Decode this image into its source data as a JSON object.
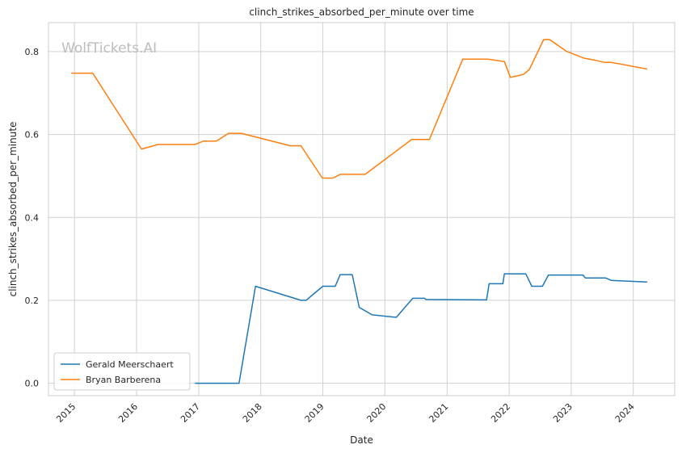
{
  "chart_data": {
    "type": "line",
    "title": "clinch_strikes_absorbed_per_minute over time",
    "xlabel": "Date",
    "ylabel": "clinch_strikes_absorbed_per_minute",
    "watermark": "WolfTickets.AI",
    "xlim": [
      "2014-08-01",
      "2024-09-01"
    ],
    "ylim": [
      -0.03,
      0.87
    ],
    "x_ticks": [
      "2015-01-01",
      "2016-01-01",
      "2017-01-01",
      "2018-01-01",
      "2019-01-01",
      "2020-01-01",
      "2021-01-01",
      "2022-01-01",
      "2023-01-01",
      "2024-01-01"
    ],
    "x_tick_labels": [
      "2015",
      "2016",
      "2017",
      "2018",
      "2019",
      "2020",
      "2021",
      "2022",
      "2023",
      "2024"
    ],
    "y_ticks": [
      0.0,
      0.2,
      0.4,
      0.6,
      0.8
    ],
    "y_tick_labels": [
      "0.0",
      "0.2",
      "0.4",
      "0.6",
      "0.8"
    ],
    "grid": true,
    "legend_position": "lower-left",
    "series": [
      {
        "name": "Gerald Meerschaert",
        "color": "#1f77b4",
        "x": [
          "2016-12-10",
          "2017-08-26",
          "2017-12-01",
          "2018-08-25",
          "2018-09-25",
          "2019-01-01",
          "2019-03-15",
          "2019-04-13",
          "2019-06-23",
          "2019-08-03",
          "2019-10-18",
          "2020-03-08",
          "2020-06-13",
          "2020-08-22",
          "2020-08-29",
          "2021-08-21",
          "2021-09-05",
          "2021-11-25",
          "2021-12-04",
          "2022-04-09",
          "2022-05-14",
          "2022-07-16",
          "2022-08-20",
          "2023-03-11",
          "2023-03-25",
          "2023-07-22",
          "2023-08-26",
          "2024-03-23"
        ],
        "y": [
          0.0,
          0.0,
          0.234,
          0.2,
          0.2,
          0.234,
          0.234,
          0.262,
          0.262,
          0.183,
          0.165,
          0.159,
          0.205,
          0.205,
          0.202,
          0.201,
          0.24,
          0.24,
          0.264,
          0.264,
          0.234,
          0.234,
          0.261,
          0.261,
          0.254,
          0.254,
          0.248,
          0.244
        ]
      },
      {
        "name": "Bryan Barberena",
        "color": "#ff7f0e",
        "x": [
          "2014-12-13",
          "2015-04-18",
          "2016-01-30",
          "2016-05-08",
          "2016-11-19",
          "2016-12-10",
          "2017-01-28",
          "2017-04-15",
          "2017-06-25",
          "2017-09-09",
          "2018-06-23",
          "2018-08-25",
          "2018-12-29",
          "2019-03-02",
          "2019-04-13",
          "2019-09-07",
          "2020-06-06",
          "2020-09-19",
          "2021-04-03",
          "2021-08-28",
          "2021-12-04",
          "2022-01-08",
          "2022-03-26",
          "2022-04-30",
          "2022-07-23",
          "2022-08-27",
          "2022-12-03",
          "2023-03-18",
          "2023-05-13",
          "2023-07-15",
          "2023-08-26",
          "2024-03-23"
        ],
        "y": [
          0.748,
          0.748,
          0.565,
          0.576,
          0.576,
          0.576,
          0.584,
          0.584,
          0.603,
          0.603,
          0.573,
          0.573,
          0.495,
          0.495,
          0.504,
          0.504,
          0.588,
          0.588,
          0.782,
          0.782,
          0.776,
          0.738,
          0.745,
          0.757,
          0.829,
          0.829,
          0.801,
          0.784,
          0.78,
          0.774,
          0.774,
          0.758
        ]
      }
    ]
  }
}
